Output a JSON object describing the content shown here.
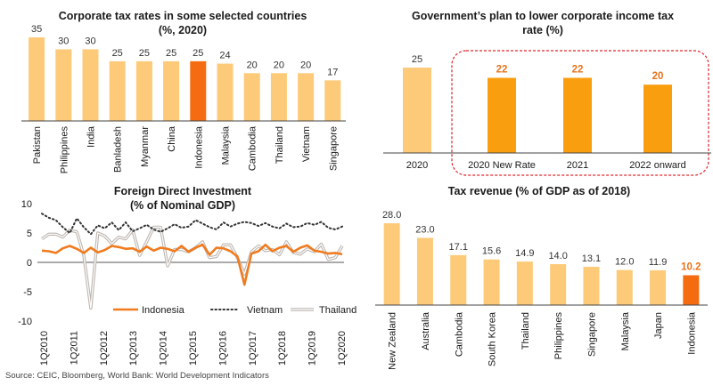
{
  "source": "Source: CEIC, Bloomberg, World Bank: World Development Indicators",
  "chart_data": [
    {
      "id": "tax_rates",
      "type": "bar",
      "title_lines": [
        "Corporate tax rates in some selected countries",
        "(%, 2020)"
      ],
      "categories": [
        "Pakistan",
        "Philippines",
        "India",
        "Banladesh",
        "Myanmar",
        "China",
        "Indonesia",
        "Malaysia",
        "Cambodia",
        "Thailand",
        "Vietnam",
        "Singapore"
      ],
      "values": [
        35,
        30,
        30,
        25,
        25,
        25,
        25,
        24,
        20,
        20,
        20,
        17
      ],
      "highlight": "Indonesia",
      "ylim": [
        0,
        40
      ],
      "colors": {
        "bar": "#fdca79",
        "highlight": "#f56b0f"
      }
    },
    {
      "id": "gov_plan",
      "type": "bar",
      "title_lines": [
        "Government’s plan to lower corporate income tax",
        "rate (%)"
      ],
      "categories": [
        "2020",
        "2020 New Rate",
        "2021",
        "2022 onward"
      ],
      "values": [
        25,
        22,
        22,
        20
      ],
      "highlighted": [
        "2020 New Rate",
        "2021",
        "2022 onward"
      ],
      "ylim": [
        0,
        30
      ],
      "colors": {
        "bar": "#fdca79",
        "highlight": "#f99e0f",
        "box": "#e0262b",
        "label_hi": "#e8731a"
      }
    },
    {
      "id": "fdi",
      "type": "line",
      "title_lines": [
        "Foreign Direct Investment",
        "(% of Nominal GDP)"
      ],
      "x_labels": [
        "1Q2010",
        "1Q2011",
        "1Q2012",
        "1Q2013",
        "1Q2014",
        "1Q2015",
        "1Q2016",
        "1Q2017",
        "1Q2018",
        "1Q2019",
        "1Q2020"
      ],
      "yticks": [
        10,
        5,
        0,
        -5,
        -10
      ],
      "ylim": [
        -10,
        10
      ],
      "series": [
        {
          "name": "Indonesia",
          "color": "#f07b1f",
          "style": "solid",
          "values": [
            2.0,
            1.9,
            1.6,
            2.4,
            2.8,
            2.3,
            1.6,
            2.5,
            1.7,
            2.1,
            2.8,
            2.6,
            2.3,
            2.4,
            1.8,
            2.7,
            2.0,
            2.5,
            2.3,
            1.9,
            2.8,
            1.8,
            2.5,
            3.0,
            1.3,
            2.5,
            2.4,
            1.9,
            1.0,
            -3.8,
            1.5,
            1.9,
            3.0,
            1.9,
            2.5,
            2.8,
            1.8,
            2.5,
            2.9,
            2.0,
            1.8,
            1.5,
            1.6,
            1.4
          ]
        },
        {
          "name": "Vietnam",
          "color": "#333333",
          "style": "dotted",
          "values": [
            8.3,
            7.6,
            7.2,
            6.0,
            5.0,
            7.5,
            6.0,
            4.8,
            6.3,
            5.8,
            6.8,
            5.5,
            6.8,
            5.3,
            5.8,
            6.4,
            5.6,
            5.2,
            5.8,
            6.5,
            5.9,
            6.1,
            7.2,
            6.6,
            6.0,
            5.6,
            6.8,
            6.1,
            6.6,
            6.9,
            6.7,
            6.2,
            6.7,
            6.1,
            5.8,
            6.6,
            6.0,
            6.1,
            6.7,
            6.4,
            6.9,
            5.9,
            5.6,
            6.1
          ]
        },
        {
          "name": "Thailand",
          "color": "#bdb6b0",
          "style": "double",
          "values": [
            4.0,
            4.8,
            4.8,
            4.3,
            5.5,
            5.2,
            1.2,
            -7.8,
            5.0,
            4.5,
            3.2,
            4.3,
            4.0,
            5.5,
            1.2,
            3.5,
            6.0,
            6.0,
            -0.6,
            2.2,
            2.2,
            1.8,
            2.5,
            3.5,
            0.8,
            1.0,
            3.0,
            3.0,
            0.8,
            -2.0,
            1.8,
            2.8,
            2.0,
            2.2,
            1.3,
            3.5,
            1.7,
            1.4,
            2.3,
            1.8,
            3.1,
            0.5,
            0.8,
            2.8
          ]
        }
      ]
    },
    {
      "id": "tax_revenue",
      "type": "bar",
      "title_lines": [
        "Tax revenue (% of GDP as of 2018)"
      ],
      "categories": [
        "New Zealand",
        "Australia",
        "Cambodia",
        "South Korea",
        "Thailand",
        "Philippines",
        "Singapore",
        "Malaysia",
        "Japan",
        "Indonesia"
      ],
      "values": [
        28.0,
        23.0,
        17.1,
        15.6,
        14.9,
        14.0,
        13.1,
        12.0,
        11.9,
        10.2
      ],
      "value_labels": [
        "28.0",
        "23.0",
        "17.1",
        "15.6",
        "14.9",
        "14.0",
        "13.1",
        "12.0",
        "11.9",
        "10.2"
      ],
      "highlight": "Indonesia",
      "ylim": [
        0,
        32
      ],
      "colors": {
        "bar": "#fdca79",
        "highlight": "#f56b0f",
        "label_hi": "#e8731a"
      }
    }
  ]
}
